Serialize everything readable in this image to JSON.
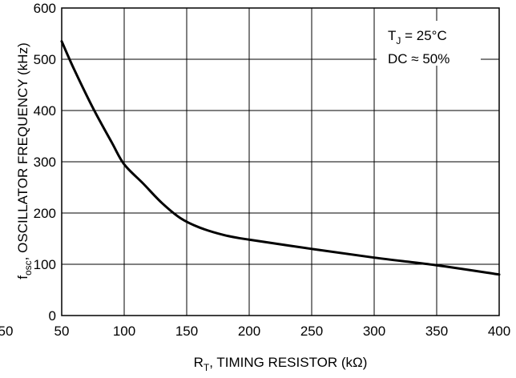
{
  "chart_data": {
    "type": "line",
    "title": "",
    "xlabel": {
      "main": "R",
      "sub": "T",
      "rest": ", TIMING RESISTOR (kΩ)"
    },
    "ylabel": {
      "main": "f",
      "sub": "osc",
      "rest": ", OSCILLATOR FREQUENCY (kHz)"
    },
    "xlim": [
      50,
      400
    ],
    "ylim": [
      0,
      600
    ],
    "x_ticks": [
      "50",
      "100",
      "150",
      "200",
      "250",
      "300",
      "350",
      "400"
    ],
    "y_ticks": [
      "0",
      "100",
      "200",
      "300",
      "400",
      "500",
      "600"
    ],
    "x_left_label": "50",
    "grid": true,
    "annotation": {
      "line1_main": "T",
      "line1_sub": "J",
      "line1_rest": " = 25°C",
      "line2": "DC ≈ 50%"
    },
    "series": [
      {
        "color": "#000000",
        "x": [
          50,
          60,
          75,
          90,
          100,
          115,
          130,
          145,
          160,
          180,
          200,
          250,
          300,
          350,
          400
        ],
        "y": [
          535,
          480,
          405,
          338,
          295,
          258,
          220,
          190,
          172,
          157,
          148,
          130,
          113,
          98,
          80
        ]
      }
    ]
  }
}
